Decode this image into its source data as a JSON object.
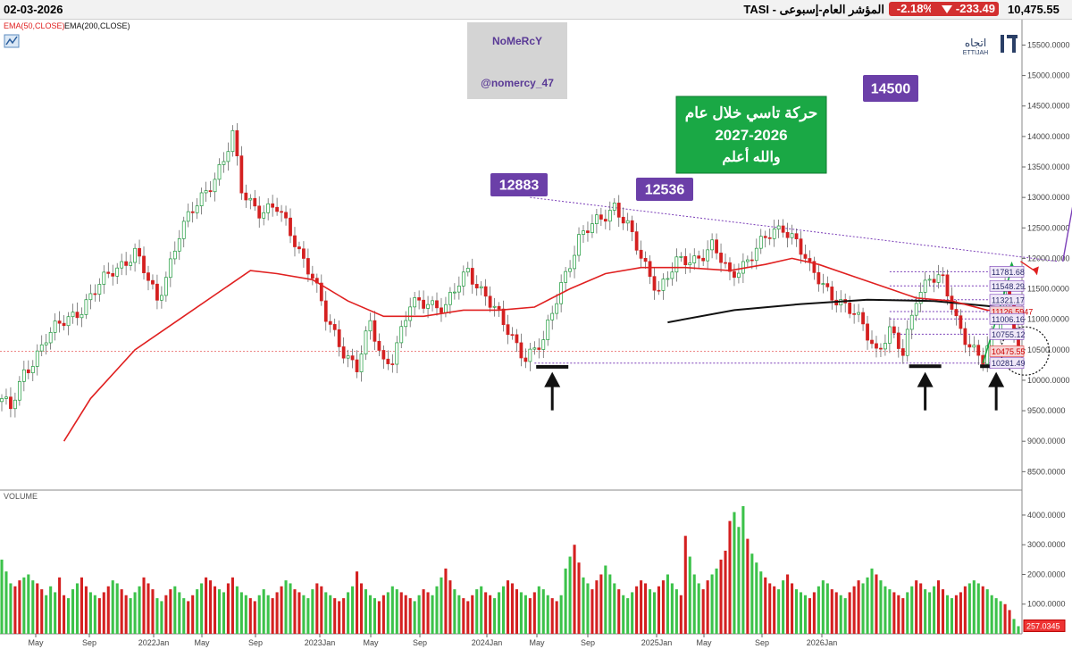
{
  "header": {
    "date": "02-03-2026",
    "symbol": "TASI - المؤشر العام-إسبوعى",
    "change_pct": "-2.18%",
    "change_abs": "-233.49",
    "last": "10,475.55"
  },
  "legend": {
    "ema50": "EMA(50,CLOSE)",
    "ema200": "EMA(200,CLOSE)",
    "ema50_color": "#e02020",
    "ema200_color": "#111111"
  },
  "watermark": {
    "name": "NoMeRcY",
    "handle": "@nomercy_47"
  },
  "logo": {
    "ar": "اتجاه",
    "en": "ETTIJAH"
  },
  "annotation": {
    "line1": "حركة تاسي خلال عام",
    "line2": "2027-2026",
    "line3": "والله أعلم"
  },
  "volume_label": "VOLUME",
  "chart_data": {
    "type": "candlestick",
    "price_axis": {
      "ylim": [
        8300,
        15800
      ],
      "ticks": [
        "15500.0000",
        "15000.0000",
        "14500.0000",
        "14000.0000",
        "13500.0000",
        "13000.0000",
        "12500.0000",
        "12000.0000",
        "11500.0000",
        "11000.0000",
        "10500.0000",
        "10000.0000",
        "9500.0000",
        "9000.0000",
        "8500.0000"
      ]
    },
    "volume_axis": {
      "ylim": [
        0,
        4600
      ],
      "ticks": [
        "4000.0000",
        "3000.0000",
        "2000.0000",
        "1000.0000"
      ],
      "last_value": "257.0345"
    },
    "x_labels": [
      "May",
      "Sep",
      "2022Jan",
      "May",
      "Sep",
      "2023Jan",
      "May",
      "Sep",
      "2024Jan",
      "May",
      "Sep",
      "2025Jan",
      "May",
      "Sep",
      "2026Jan"
    ],
    "price_path": [
      [
        0,
        9700
      ],
      [
        2,
        9500
      ],
      [
        5,
        10100
      ],
      [
        10,
        10700
      ],
      [
        18,
        11200
      ],
      [
        25,
        11800
      ],
      [
        30,
        12100
      ],
      [
        35,
        11300
      ],
      [
        40,
        12400
      ],
      [
        45,
        13000
      ],
      [
        50,
        13600
      ],
      [
        52,
        14000
      ],
      [
        54,
        13100
      ],
      [
        58,
        12800
      ],
      [
        62,
        12800
      ],
      [
        66,
        12300
      ],
      [
        70,
        11700
      ],
      [
        73,
        11000
      ],
      [
        77,
        10500
      ],
      [
        80,
        10200
      ],
      [
        83,
        10900
      ],
      [
        86,
        10300
      ],
      [
        88,
        10400
      ],
      [
        92,
        11200
      ],
      [
        96,
        11300
      ],
      [
        100,
        11200
      ],
      [
        105,
        11800
      ],
      [
        109,
        11400
      ],
      [
        113,
        10900
      ],
      [
        118,
        10400
      ],
      [
        122,
        10600
      ],
      [
        126,
        11600
      ],
      [
        130,
        12300
      ],
      [
        134,
        12600
      ],
      [
        138,
        12883
      ],
      [
        141,
        12500
      ],
      [
        144,
        12000
      ],
      [
        148,
        11500
      ],
      [
        152,
        11900
      ],
      [
        156,
        12000
      ],
      [
        160,
        12200
      ],
      [
        164,
        11700
      ],
      [
        168,
        12000
      ],
      [
        172,
        12300
      ],
      [
        176,
        12536
      ],
      [
        179,
        12300
      ],
      [
        182,
        11800
      ],
      [
        186,
        11500
      ],
      [
        190,
        11200
      ],
      [
        194,
        10900
      ],
      [
        197,
        10500
      ],
      [
        200,
        10800
      ],
      [
        203,
        10400
      ],
      [
        206,
        11400
      ],
      [
        209,
        11700
      ],
      [
        212,
        11600
      ],
      [
        215,
        11000
      ],
      [
        218,
        10600
      ],
      [
        221,
        10300
      ],
      [
        224,
        10800
      ],
      [
        226,
        11500
      ],
      [
        227,
        11300
      ],
      [
        228,
        10900
      ],
      [
        229,
        10475
      ]
    ],
    "ema50_path": [
      [
        14,
        9000
      ],
      [
        20,
        9700
      ],
      [
        30,
        10500
      ],
      [
        40,
        11000
      ],
      [
        50,
        11500
      ],
      [
        56,
        11800
      ],
      [
        62,
        11750
      ],
      [
        70,
        11650
      ],
      [
        78,
        11300
      ],
      [
        86,
        11050
      ],
      [
        95,
        11050
      ],
      [
        104,
        11150
      ],
      [
        112,
        11150
      ],
      [
        120,
        11200
      ],
      [
        128,
        11500
      ],
      [
        136,
        11750
      ],
      [
        144,
        11850
      ],
      [
        154,
        11850
      ],
      [
        164,
        11800
      ],
      [
        172,
        11900
      ],
      [
        178,
        12000
      ],
      [
        184,
        11900
      ],
      [
        192,
        11700
      ],
      [
        200,
        11500
      ],
      [
        206,
        11350
      ],
      [
        214,
        11300
      ],
      [
        222,
        11150
      ],
      [
        229,
        11126.59
      ]
    ],
    "ema200_path": [
      [
        150,
        10950
      ],
      [
        165,
        11150
      ],
      [
        180,
        11250
      ],
      [
        195,
        11320
      ],
      [
        210,
        11300
      ],
      [
        222,
        11220
      ],
      [
        229,
        11150
      ]
    ],
    "levels": [
      {
        "value": 11781.68,
        "label": "11781.68"
      },
      {
        "value": 11548.29,
        "label": "11548.29"
      },
      {
        "value": 11321.17,
        "label": "11321.17"
      },
      {
        "value": 11126.5947,
        "label": "11126.5947"
      },
      {
        "value": 11006.16,
        "label": "11006.16"
      },
      {
        "value": 10755.12,
        "label": "10755.12"
      },
      {
        "value": 10475.55,
        "label": "10475.55"
      },
      {
        "value": 10281.49,
        "label": "10281.49"
      }
    ],
    "callouts": [
      {
        "label": "12883",
        "value": 12883
      },
      {
        "label": "12536",
        "value": 12536
      },
      {
        "label": "14500",
        "value": 14500
      }
    ],
    "trendline": {
      "from": [
        119,
        13000
      ],
      "to": [
        238,
        11950
      ]
    },
    "support_bars": [
      {
        "x": 124,
        "value": 10220
      },
      {
        "x": 208,
        "value": 10230
      },
      {
        "x": 224,
        "value": 10230
      }
    ],
    "arrows_up": [
      {
        "x": 124
      },
      {
        "x": 208
      },
      {
        "x": 224
      }
    ],
    "projection": {
      "from": [
        239,
        11950
      ],
      "to": [
        245,
        14500
      ]
    },
    "volume": [
      2500,
      2100,
      1700,
      1600,
      1800,
      1900,
      2000,
      1800,
      1700,
      1500,
      1300,
      1600,
      1400,
      1900,
      1300,
      1200,
      1500,
      1700,
      1900,
      1600,
      1400,
      1300,
      1200,
      1400,
      1600,
      1800,
      1700,
      1500,
      1300,
      1200,
      1400,
      1600,
      1900,
      1700,
      1500,
      1200,
      1100,
      1300,
      1500,
      1600,
      1400,
      1200,
      1100,
      1300,
      1500,
      1700,
      1900,
      1800,
      1600,
      1500,
      1400,
      1700,
      1900,
      1600,
      1400,
      1300,
      1200,
      1100,
      1300,
      1500,
      1300,
      1200,
      1400,
      1600,
      1800,
      1700,
      1500,
      1400,
      1300,
      1200,
      1500,
      1700,
      1600,
      1400,
      1300,
      1200,
      1100,
      1200,
      1400,
      1600,
      2100,
      1700,
      1500,
      1300,
      1200,
      1100,
      1300,
      1400,
      1600,
      1500,
      1400,
      1300,
      1200,
      1100,
      1300,
      1500,
      1400,
      1300,
      1600,
      1900,
      2200,
      1800,
      1500,
      1300,
      1200,
      1100,
      1300,
      1500,
      1600,
      1400,
      1300,
      1200,
      1400,
      1600,
      1800,
      1700,
      1500,
      1400,
      1300,
      1200,
      1400,
      1600,
      1500,
      1300,
      1200,
      1100,
      1300,
      2200,
      2600,
      3000,
      2400,
      1900,
      1700,
      1500,
      1800,
      2000,
      2300,
      2000,
      1700,
      1500,
      1300,
      1200,
      1400,
      1600,
      1800,
      1700,
      1500,
      1400,
      1600,
      1800,
      2000,
      1700,
      1500,
      1300,
      3300,
      2600,
      2000,
      1700,
      1500,
      1800,
      2000,
      2200,
      2500,
      2800,
      3800,
      4100,
      3600,
      4300,
      3200,
      2700,
      2400,
      2100,
      1900,
      1700,
      1600,
      1500,
      1800,
      2000,
      1700,
      1500,
      1400,
      1300,
      1200,
      1400,
      1600,
      1800,
      1700,
      1500,
      1400,
      1300,
      1200,
      1400,
      1600,
      1800,
      1700,
      1900,
      2200,
      2000,
      1800,
      1600,
      1500,
      1400,
      1300,
      1200,
      1400,
      1600,
      1800,
      1700,
      1500,
      1400,
      1600,
      1800,
      1500,
      1300,
      1200,
      1300,
      1400,
      1600,
      1700,
      1800,
      1700,
      1600,
      1500,
      1300,
      1200,
      1100,
      1000,
      800,
      500,
      257
    ]
  }
}
